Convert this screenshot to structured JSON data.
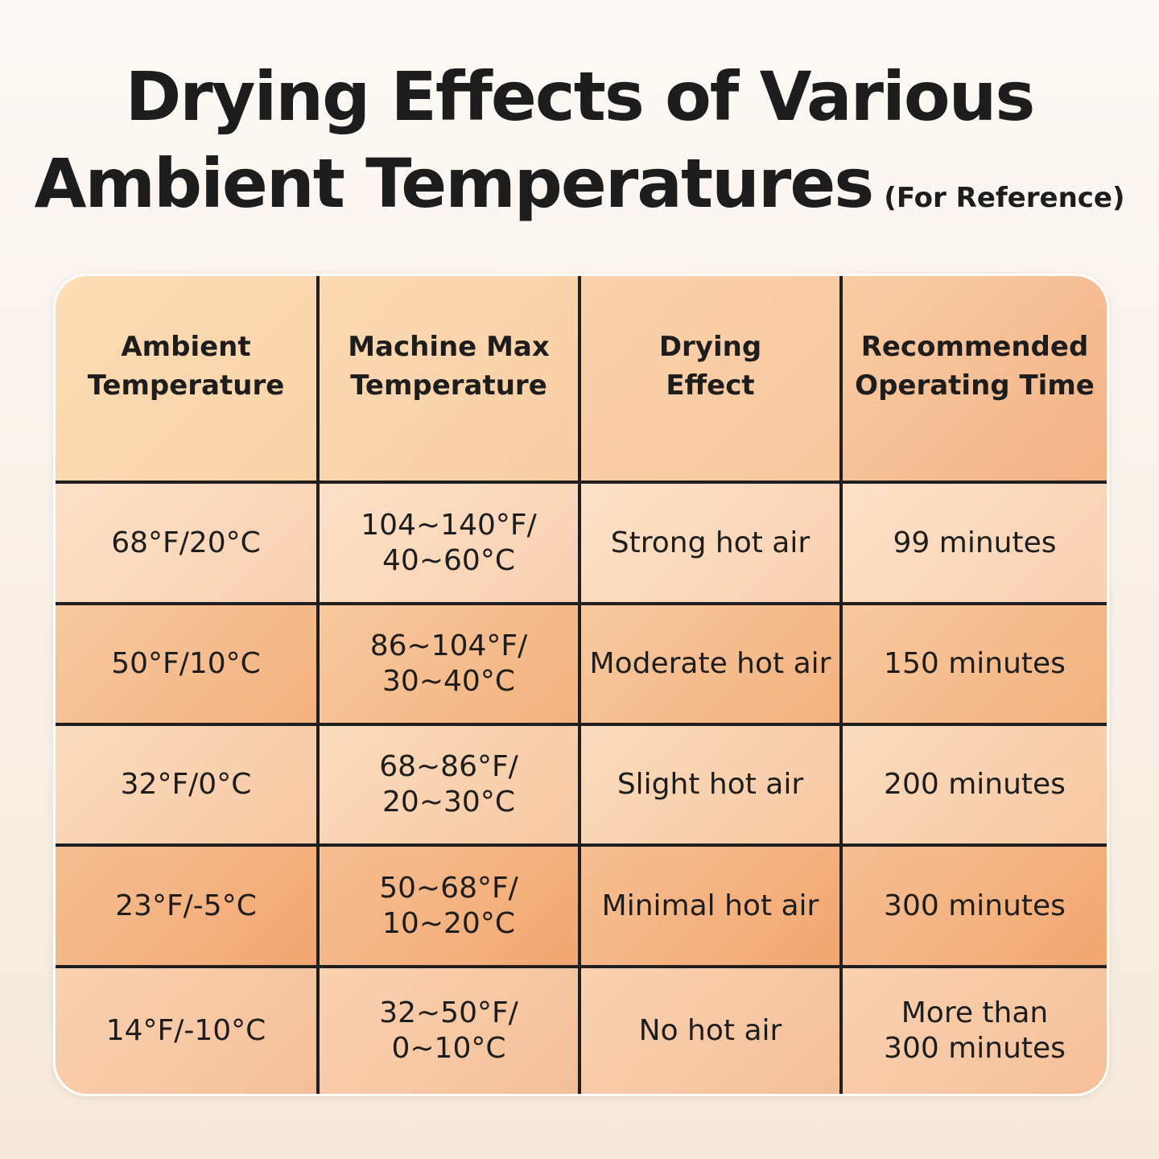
{
  "title": {
    "line1": "Drying Effects of Various",
    "line2": "Ambient Temperatures",
    "note": "(For Reference)"
  },
  "table": {
    "headers": [
      "Ambient\nTemperature",
      "Machine Max\nTemperature",
      "Drying\nEffect",
      "Recommended\nOperating Time"
    ],
    "rows": [
      [
        "68°F/20°C",
        "104~140°F/\n40~60°C",
        "Strong hot air",
        "99 minutes"
      ],
      [
        "50°F/10°C",
        "86~104°F/\n30~40°C",
        "Moderate hot air",
        "150 minutes"
      ],
      [
        "32°F/0°C",
        "68~86°F/\n20~30°C",
        "Slight hot air",
        "200 minutes"
      ],
      [
        "23°F/-5°C",
        "50~68°F/\n10~20°C",
        "Minimal hot air",
        "300 minutes"
      ],
      [
        "14°F/-10°C",
        "32~50°F/\n0~10°C",
        "No hot air",
        "More than\n300 minutes"
      ]
    ]
  }
}
